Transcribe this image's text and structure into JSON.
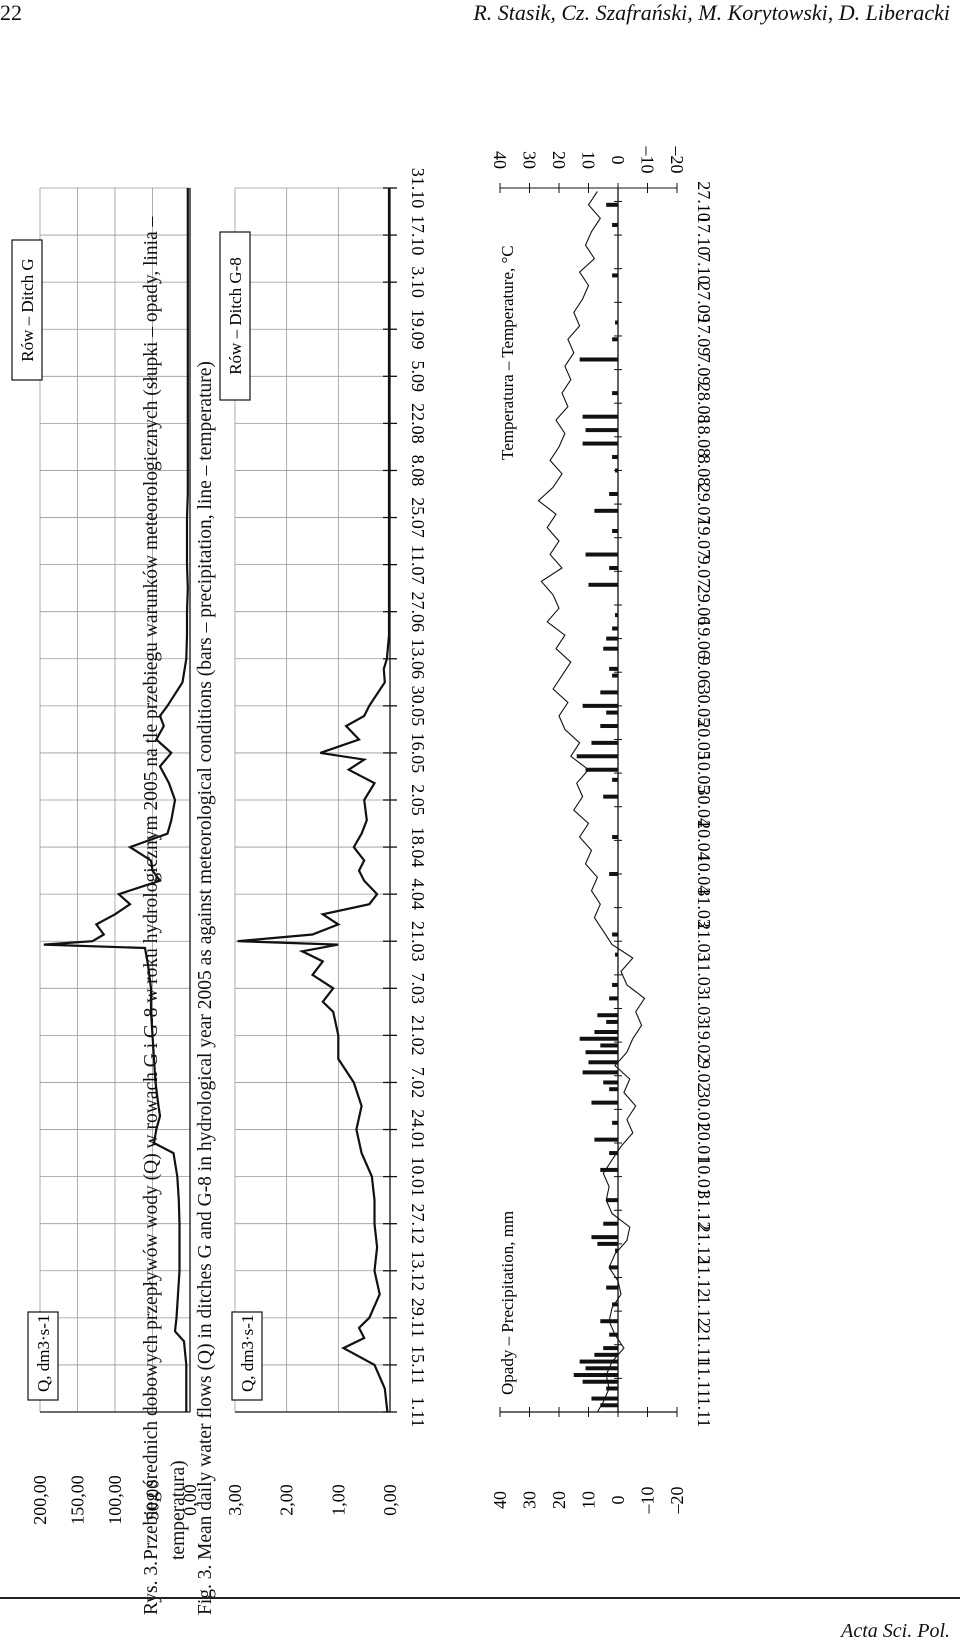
{
  "header": {
    "page_number": "22",
    "authors": "R. Stasik, Cz. Szafrański, M. Korytowski, D. Liberacki"
  },
  "footer": {
    "journal": "Acta Sci. Pol."
  },
  "caption": [
    {
      "label": "Rys. 3.",
      "text": "Przebieg średnich dobowych przepływów wody (Q) w rowach G i G-8 w roku hydrologicznym 2005 na tle przebiegu warunków meteorologicznych (słupki – opady, linia – temperatura)"
    },
    {
      "label": "Fig. 3.",
      "text": "Mean daily water flows (Q) in ditches G and G-8 in hydrological year 2005 as against meteorological conditions (bars – precipitation, line – temperature)"
    }
  ],
  "chart_data": [
    {
      "type": "line",
      "title": "Rów – Ditch G",
      "ylabel": "Q, dm3·s-1",
      "ylim": [
        0,
        200
      ],
      "yticks": [
        "0,00",
        "50,00",
        "100,00",
        "150,00",
        "200,00"
      ],
      "grid": true,
      "x_date_labels": [
        "1.11",
        "15.11",
        "29.11",
        "13.12",
        "27.12",
        "10.01",
        "24.01",
        "7.02",
        "21.02",
        "7.03",
        "21.03",
        "4.04",
        "18.04",
        "2.05",
        "16.05",
        "30.05",
        "13.06",
        "27.06",
        "11.07",
        "25.07",
        "8.08",
        "22.08",
        "5.09",
        "19.09",
        "3.10",
        "17.10",
        "31.10"
      ],
      "x": [
        "1.11",
        "8.11",
        "15.11",
        "22.11",
        "25.11",
        "29.11",
        "6.12",
        "13.12",
        "20.12",
        "27.12",
        "3.01",
        "10.01",
        "17.01",
        "20.01",
        "24.01",
        "28.01",
        "31.01",
        "7.02",
        "14.02",
        "21.02",
        "28.02",
        "7.03",
        "14.03",
        "19.03",
        "20.03",
        "21.03",
        "23.03",
        "26.03",
        "29.03",
        "1.04",
        "4.04",
        "8.04",
        "11.04",
        "14.04",
        "18.04",
        "22.04",
        "26.04",
        "2.05",
        "7.05",
        "12.05",
        "16.05",
        "20.05",
        "24.05",
        "27.05",
        "30.05",
        "6.06",
        "13.06",
        "20.06",
        "27.06",
        "4.07",
        "11.07",
        "18.07",
        "25.07",
        "1.08",
        "8.08",
        "15.08",
        "22.08",
        "29.08",
        "5.09",
        "12.09",
        "19.09",
        "26.09",
        "3.10",
        "10.10",
        "17.10",
        "24.10",
        "31.10"
      ],
      "values": [
        5,
        5,
        5,
        8,
        20,
        18,
        16,
        14,
        14,
        14,
        15,
        17,
        22,
        48,
        45,
        40,
        42,
        46,
        48,
        50,
        52,
        52,
        56,
        60,
        195,
        130,
        115,
        125,
        100,
        80,
        95,
        40,
        50,
        52,
        80,
        30,
        25,
        20,
        28,
        40,
        25,
        45,
        35,
        40,
        30,
        10,
        5,
        4,
        4,
        3,
        4,
        4,
        4,
        3,
        3,
        3,
        3,
        3,
        3,
        3,
        3,
        3,
        3,
        3,
        3,
        3,
        3
      ]
    },
    {
      "type": "line",
      "title": "Rów – Ditch G-8",
      "ylabel": "Q, dm3·s-1",
      "ylim": [
        0,
        3
      ],
      "yticks": [
        "0,00",
        "1,00",
        "2,00",
        "3,00"
      ],
      "grid": true,
      "x_date_labels": [
        "1.11",
        "15.11",
        "29.11",
        "13.12",
        "27.12",
        "10.01",
        "24.01",
        "7.02",
        "21.02",
        "7.03",
        "21.03",
        "4.04",
        "18.04",
        "2.05",
        "16.05",
        "30.05",
        "13.06",
        "27.06",
        "11.07",
        "25.07",
        "8.08",
        "22.08",
        "5.09",
        "19.09",
        "3.10",
        "17.10",
        "31.10"
      ],
      "x": [
        "1.11",
        "8.11",
        "15.11",
        "20.11",
        "23.11",
        "26.11",
        "29.11",
        "6.12",
        "13.12",
        "20.12",
        "27.12",
        "3.01",
        "10.01",
        "17.01",
        "24.01",
        "31.01",
        "7.02",
        "14.02",
        "21.02",
        "28.02",
        "3.03",
        "7.03",
        "11.03",
        "15.03",
        "18.03",
        "20.03",
        "21.03",
        "23.03",
        "26.03",
        "29.03",
        "1.04",
        "4.04",
        "8.04",
        "11.04",
        "14.04",
        "18.04",
        "22.04",
        "26.04",
        "2.05",
        "7.05",
        "11.05",
        "14.05",
        "16.05",
        "20.05",
        "24.05",
        "27.05",
        "30.05",
        "6.06",
        "10.06",
        "13.06",
        "20.06",
        "27.06",
        "11.07",
        "25.07",
        "8.08",
        "22.08",
        "5.09",
        "19.09",
        "3.10",
        "17.10",
        "31.10"
      ],
      "values": [
        0.05,
        0.1,
        0.3,
        0.9,
        0.5,
        0.6,
        0.4,
        0.2,
        0.3,
        0.25,
        0.3,
        0.3,
        0.35,
        0.55,
        0.65,
        0.55,
        0.7,
        1.0,
        1.0,
        1.1,
        1.3,
        1.1,
        1.5,
        1.3,
        1.7,
        1.0,
        2.95,
        1.5,
        1.0,
        1.3,
        0.4,
        0.25,
        0.5,
        0.6,
        0.5,
        0.7,
        0.55,
        0.45,
        0.5,
        0.3,
        0.8,
        0.5,
        1.35,
        0.6,
        0.85,
        0.5,
        0.4,
        0.1,
        0.12,
        0.06,
        0.02,
        0.02,
        0.02,
        0.02,
        0.02,
        0.02,
        0.02,
        0.02,
        0.02,
        0.02,
        0.02
      ]
    },
    {
      "type": "bar+line",
      "precipitation_label": "Opady – Precipitation, mm",
      "temperature_label": "Temperatura – Temperature, °C",
      "ylim": [
        -20,
        40
      ],
      "yticks_left": [
        "40",
        "30",
        "20",
        "10",
        "0",
        "–10",
        "–20"
      ],
      "yticks_right": [
        "40",
        "30",
        "20",
        "10",
        "0",
        "–10",
        "–20"
      ],
      "grid": false,
      "x_date_labels": [
        "1.11",
        "11.11",
        "21.11",
        "1.12",
        "11.12",
        "21.12",
        "31.12",
        "10.01",
        "20.01",
        "30.01",
        "9.02",
        "19.02",
        "1.03",
        "11.03",
        "21.03",
        "31.03",
        "10.04",
        "20.04",
        "30.04",
        "10.05",
        "20.05",
        "30.05",
        "9.06",
        "19.06",
        "29.06",
        "9.07",
        "19.07",
        "29.07",
        "8.08",
        "18.08",
        "28.08",
        "7.09",
        "17.09",
        "27.09",
        "7.10",
        "17.10",
        "27.10"
      ],
      "precipitation": {
        "dates": [
          "3.11",
          "5.11",
          "8.11",
          "10.11",
          "12.11",
          "14.11",
          "16.11",
          "18.11",
          "20.11",
          "24.11",
          "28.11",
          "3.12",
          "8.12",
          "14.12",
          "19.12",
          "21.12",
          "23.12",
          "27.12",
          "3.01",
          "12.01",
          "17.01",
          "21.01",
          "26.01",
          "1.02",
          "5.02",
          "7.02",
          "10.02",
          "13.02",
          "16.02",
          "18.02",
          "20.02",
          "22.02",
          "25.02",
          "27.02",
          "4.03",
          "8.03",
          "17.03",
          "23.03",
          "10.04",
          "21.04",
          "3.05",
          "8.05",
          "11.05",
          "15.05",
          "19.05",
          "24.05",
          "28.05",
          "30.05",
          "3.06",
          "8.06",
          "10.06",
          "16.06",
          "19.06",
          "22.06",
          "26.06",
          "5.07",
          "10.07",
          "14.07",
          "21.07",
          "27.07",
          "1.08",
          "8.08",
          "12.08",
          "16.08",
          "20.08",
          "24.08",
          "31.08",
          "10.09",
          "16.09",
          "21.09",
          "5.10",
          "20.10",
          "26.10"
        ],
        "values": [
          6,
          9,
          4,
          12,
          15,
          11,
          13,
          8,
          5,
          3,
          6,
          2,
          4,
          3,
          1,
          7,
          9,
          5,
          4,
          6,
          3,
          8,
          2,
          9,
          3,
          5,
          12,
          10,
          11,
          6,
          13,
          8,
          4,
          7,
          3,
          2,
          1,
          2,
          3,
          2,
          5,
          2,
          11,
          14,
          9,
          6,
          4,
          12,
          6,
          2,
          3,
          5,
          4,
          2,
          1,
          10,
          3,
          11,
          2,
          8,
          3,
          1,
          2,
          12,
          11,
          12,
          2,
          13,
          2,
          1,
          2,
          2,
          4
        ]
      },
      "temperature": {
        "dates": [
          "1.11",
          "4.11",
          "8.11",
          "12.11",
          "16.11",
          "20.11",
          "24.11",
          "28.11",
          "2.12",
          "6.12",
          "10.12",
          "14.12",
          "18.12",
          "22.12",
          "26.12",
          "30.12",
          "3.01",
          "7.01",
          "11.01",
          "15.01",
          "19.01",
          "23.01",
          "27.01",
          "31.01",
          "4.02",
          "8.02",
          "12.02",
          "16.02",
          "20.02",
          "24.02",
          "28.02",
          "4.03",
          "8.03",
          "12.03",
          "16.03",
          "20.03",
          "24.03",
          "28.03",
          "1.04",
          "5.04",
          "9.04",
          "13.04",
          "17.04",
          "21.04",
          "25.04",
          "29.04",
          "3.05",
          "7.05",
          "11.05",
          "15.05",
          "19.05",
          "23.05",
          "27.05",
          "31.05",
          "4.06",
          "8.06",
          "12.06",
          "16.06",
          "20.06",
          "24.06",
          "28.06",
          "2.07",
          "6.07",
          "10.07",
          "14.07",
          "18.07",
          "22.07",
          "26.07",
          "30.07",
          "3.08",
          "7.08",
          "11.08",
          "15.08",
          "19.08",
          "23.08",
          "27.08",
          "31.08",
          "4.09",
          "8.09",
          "12.09",
          "16.09",
          "20.09",
          "24.09",
          "28.09",
          "2.10",
          "6.10",
          "10.10",
          "14.10",
          "18.10",
          "22.10",
          "26.10",
          "30.10"
        ],
        "values": [
          7,
          5,
          3,
          4,
          2,
          -2,
          1,
          3,
          2,
          -1,
          0,
          3,
          1,
          -3,
          -4,
          2,
          4,
          3,
          5,
          2,
          -1,
          -5,
          -3,
          -6,
          -2,
          -4,
          1,
          -3,
          -5,
          -8,
          -6,
          -9,
          -3,
          -1,
          -5,
          2,
          5,
          8,
          6,
          9,
          7,
          11,
          9,
          13,
          10,
          15,
          12,
          14,
          10,
          16,
          13,
          18,
          20,
          17,
          22,
          19,
          16,
          21,
          18,
          24,
          20,
          22,
          26,
          19,
          23,
          20,
          24,
          21,
          27,
          22,
          19,
          23,
          20,
          18,
          21,
          17,
          19,
          16,
          18,
          15,
          17,
          13,
          15,
          12,
          10,
          13,
          8,
          11,
          9,
          6,
          10,
          7
        ]
      }
    }
  ]
}
